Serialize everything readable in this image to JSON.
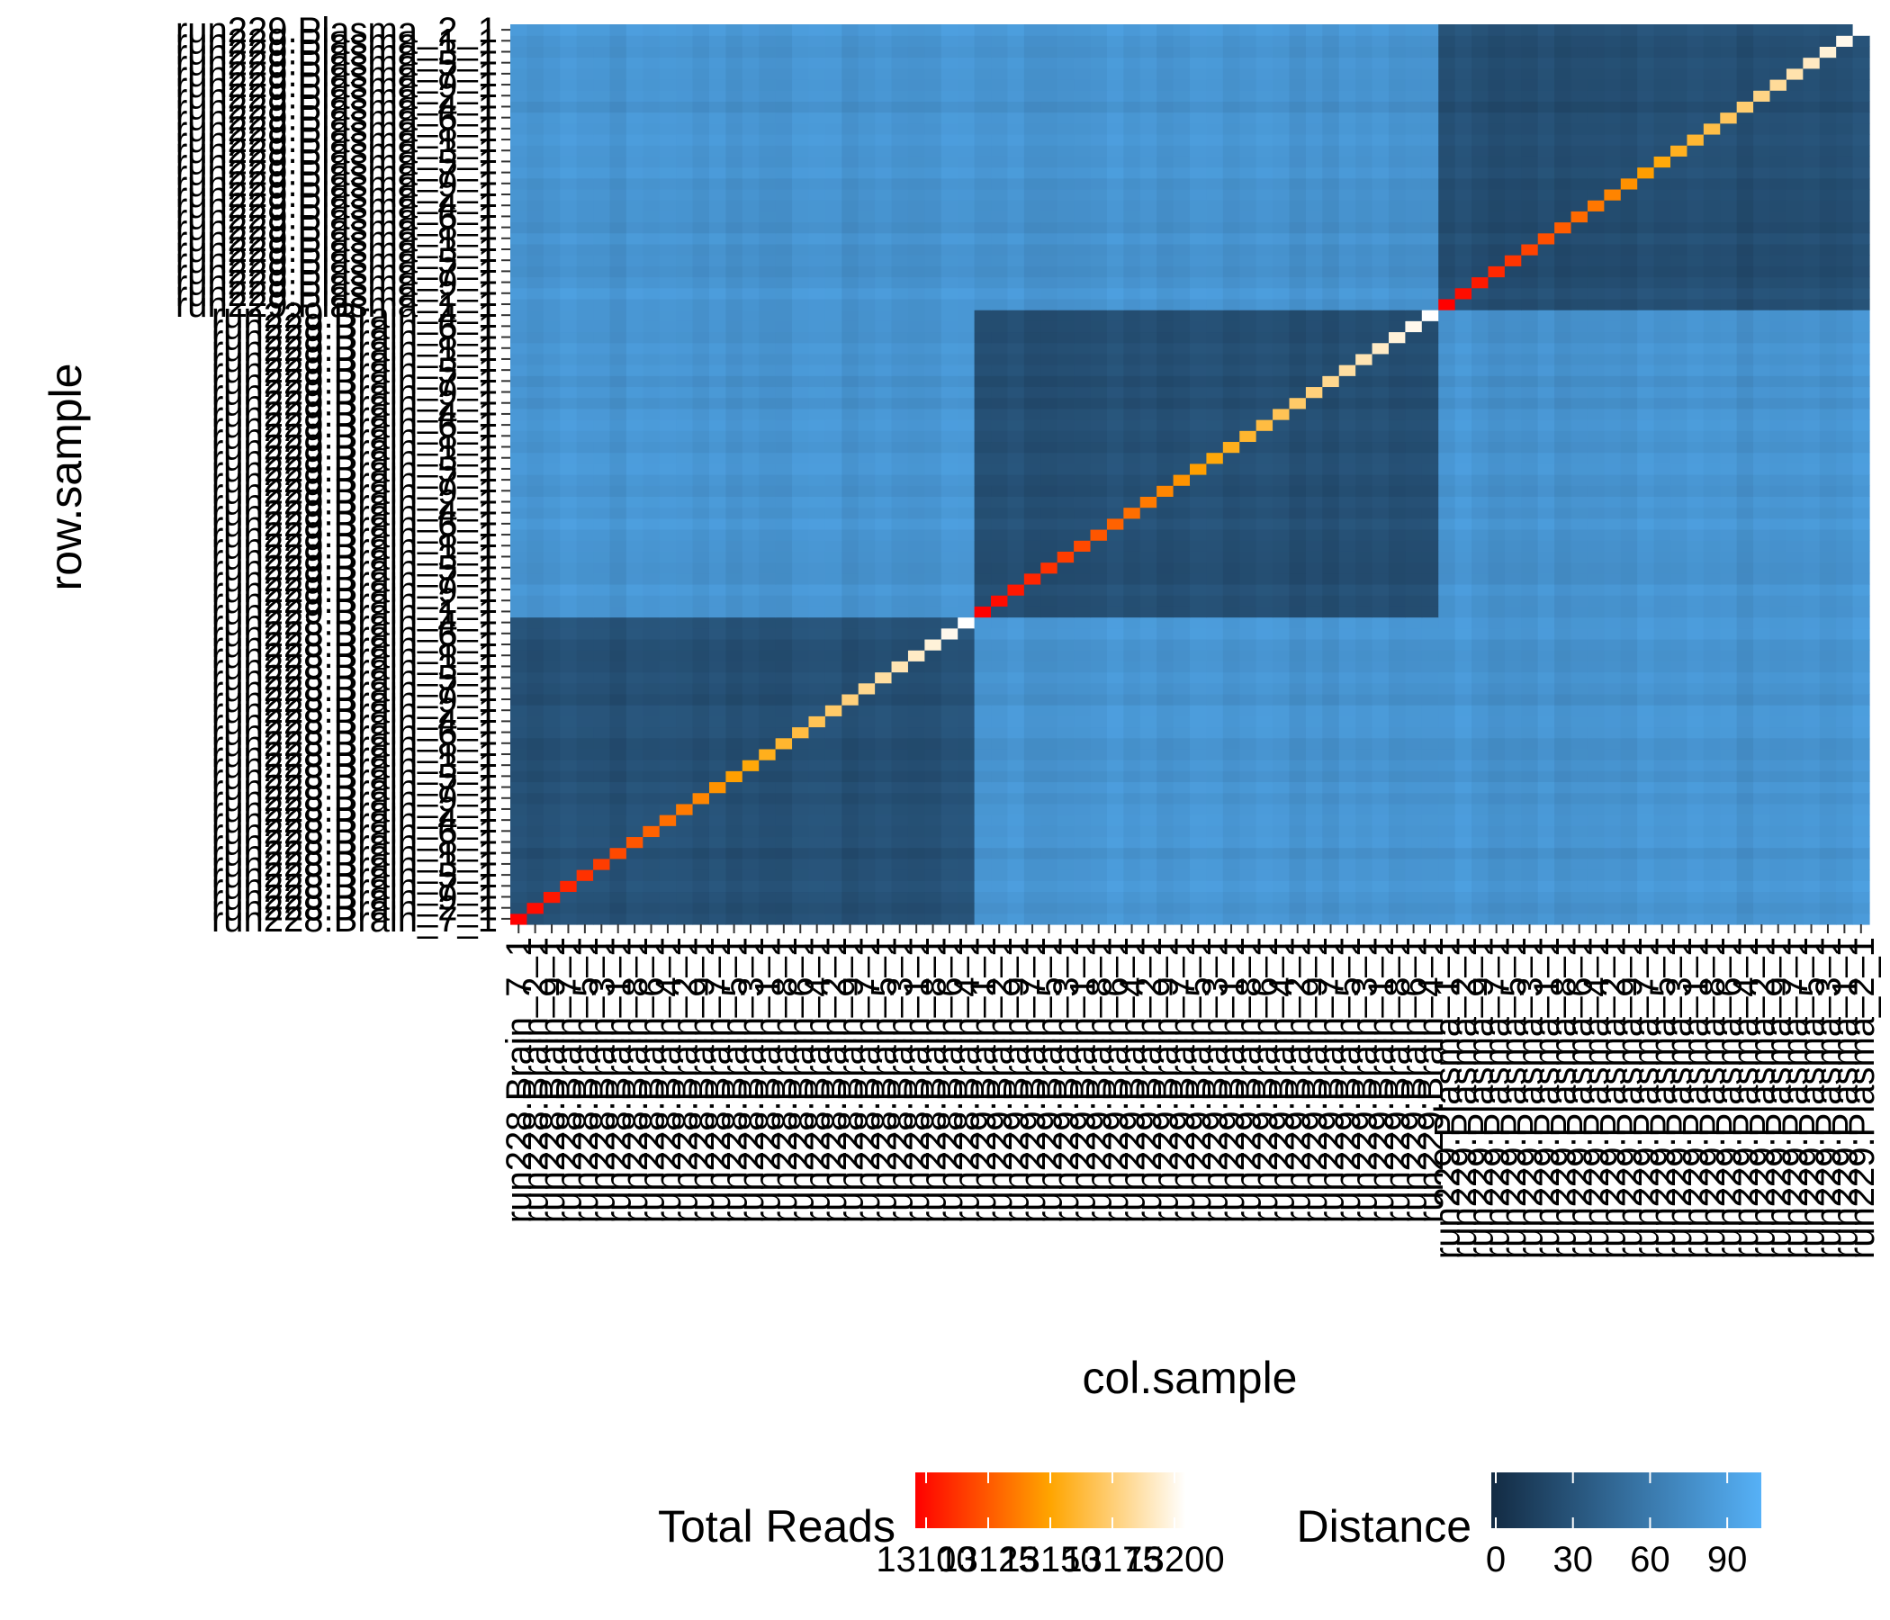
{
  "chart_data": {
    "type": "heatmap",
    "xlabel": "col.sample",
    "ylabel": "row.sample",
    "groups": [
      {
        "name": "run228.Brain",
        "count": 28,
        "first_label": "run228.Brain_7_1"
      },
      {
        "name": "run229.Brain",
        "count": 28,
        "first_label": "run229.Brain_1_1"
      },
      {
        "name": "run229.Plasma",
        "count": 26,
        "first_label": "run229.Plasma_1_1"
      }
    ],
    "top_row_label": "run229.Plasma_2_1",
    "distance_scale": {
      "title": "Distance",
      "ticks": [
        0,
        30,
        60,
        90
      ],
      "range": [
        0,
        105
      ],
      "low_color": "#132B43",
      "high_color": "#56B1F7"
    },
    "total_reads_scale": {
      "title": "Total Reads",
      "ticks": [
        "13100",
        "13125",
        "13150",
        "13175",
        "13200"
      ],
      "low_color": "#FF0000",
      "mid_color": "#FFA500",
      "high_color": "#FFFFFF"
    },
    "within_group_distance": 28,
    "between_group_distance": 82,
    "legend_position": "bottom"
  }
}
